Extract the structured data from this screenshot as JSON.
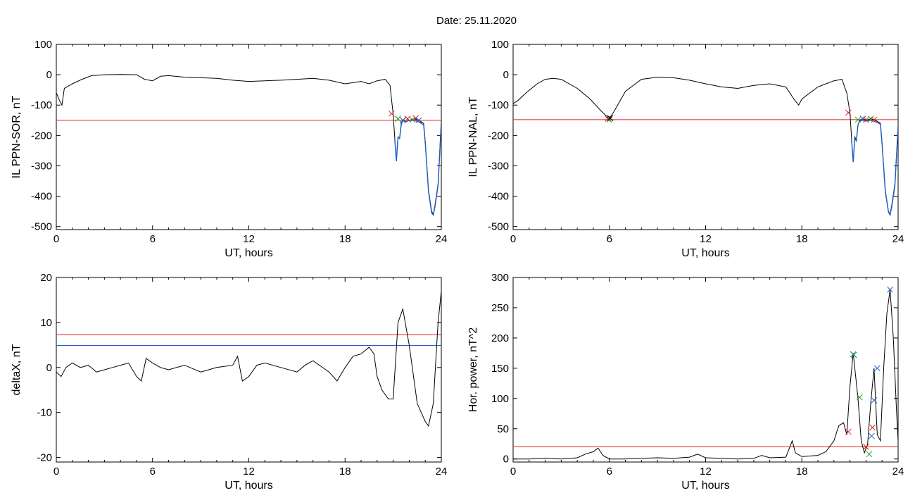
{
  "title": "Date:  25.11.2020",
  "chart_data": [
    {
      "type": "line",
      "xlabel": "UT, hours",
      "ylabel": "IL PPN-SOR, nT",
      "xlim": [
        0,
        24
      ],
      "ylim": [
        -510,
        100
      ],
      "xticks": [
        "0",
        "6",
        "12",
        "18",
        "24"
      ],
      "yticks": [
        "100",
        "0",
        "-100",
        "-200",
        "-300",
        "-400",
        "-500"
      ],
      "ytick_values": [
        100,
        0,
        -100,
        -200,
        -300,
        -400,
        -500
      ],
      "series": [
        {
          "color": "#000000",
          "x": [
            0,
            0.2,
            0.35,
            0.5,
            1,
            1.6,
            2.2,
            3,
            4,
            5,
            5.5,
            6,
            6.5,
            7,
            8,
            9,
            10,
            11,
            12,
            13,
            14,
            15,
            16,
            17,
            18,
            19,
            19.5,
            20,
            20.5,
            20.8,
            21,
            21.1,
            21.2,
            21.3,
            21.4,
            21.5,
            21.6,
            21.8,
            22,
            22.3,
            22.6,
            22.9,
            23,
            23.2,
            23.4,
            23.5,
            23.6,
            23.8,
            24
          ],
          "y": [
            -60,
            -85,
            -100,
            -45,
            -30,
            -15,
            -3,
            0,
            1,
            0,
            -15,
            -20,
            -5,
            -3,
            -8,
            -10,
            -12,
            -18,
            -22,
            -20,
            -18,
            -15,
            -12,
            -18,
            -30,
            -22,
            -30,
            -20,
            -15,
            -35,
            -130,
            -210,
            -280,
            -205,
            -210,
            -160,
            -150,
            -140,
            -150,
            -145,
            -150,
            -160,
            -220,
            -380,
            -450,
            -460,
            -430,
            -360,
            -150
          ]
        },
        {
          "color": "#1f5fbf",
          "x": [
            21.1,
            21.2,
            21.3,
            21.4,
            21.5,
            21.6,
            21.8,
            22,
            22.3,
            22.6,
            22.9,
            23,
            23.2,
            23.4,
            23.5,
            23.6,
            23.8,
            24
          ],
          "y": [
            -215,
            -285,
            -205,
            -210,
            -165,
            -150,
            -155,
            -150,
            -150,
            -155,
            -165,
            -225,
            -385,
            -455,
            -462,
            -435,
            -365,
            -155
          ]
        }
      ],
      "hlines": [
        {
          "y": -150,
          "color": "#e02020"
        }
      ],
      "markers": [
        {
          "x": 20.9,
          "y": -128,
          "color": "#e02020"
        },
        {
          "x": 21.3,
          "y": -145,
          "color": "#20a020"
        },
        {
          "x": 21.6,
          "y": -150,
          "color": "#1f5fbf"
        },
        {
          "x": 21.9,
          "y": -145,
          "color": "#e02020"
        },
        {
          "x": 22.2,
          "y": -148,
          "color": "#20a020"
        },
        {
          "x": 22.4,
          "y": -143,
          "color": "#e02020"
        },
        {
          "x": 22.6,
          "y": -150,
          "color": "#1f5fbf"
        }
      ]
    },
    {
      "type": "line",
      "xlabel": "UT, hours",
      "ylabel": "IL PPN-NAL, nT",
      "xlim": [
        0,
        24
      ],
      "ylim": [
        -510,
        100
      ],
      "xticks": [
        "0",
        "6",
        "12",
        "18",
        "24"
      ],
      "yticks": [
        "100",
        "0",
        "-100",
        "-200",
        "-300",
        "-400",
        "-500"
      ],
      "ytick_values": [
        100,
        0,
        -100,
        -200,
        -300,
        -400,
        -500
      ],
      "series": [
        {
          "color": "#000000",
          "x": [
            0,
            0.3,
            0.8,
            1.5,
            2,
            2.5,
            3,
            4,
            4.8,
            5.5,
            6,
            6.3,
            7,
            8,
            9,
            10,
            11,
            12,
            13,
            14,
            15,
            16,
            17,
            17.5,
            17.8,
            18,
            19,
            19.5,
            20,
            20.5,
            20.8,
            21,
            21.1,
            21.2,
            21.3,
            21.4,
            21.5,
            21.6,
            21.8,
            22,
            22.3,
            22.6,
            22.9,
            23,
            23.2,
            23.4,
            23.5,
            23.6,
            23.8,
            24
          ],
          "y": [
            -95,
            -85,
            -60,
            -30,
            -15,
            -12,
            -15,
            -45,
            -80,
            -120,
            -145,
            -120,
            -55,
            -15,
            -8,
            -10,
            -18,
            -30,
            -40,
            -45,
            -35,
            -30,
            -40,
            -80,
            -100,
            -80,
            -40,
            -30,
            -20,
            -15,
            -60,
            -125,
            -210,
            -285,
            -205,
            -215,
            -165,
            -150,
            -145,
            -150,
            -145,
            -150,
            -160,
            -225,
            -380,
            -450,
            -460,
            -430,
            -360,
            -170
          ]
        },
        {
          "color": "#1f5fbf",
          "x": [
            21.1,
            21.2,
            21.3,
            21.4,
            21.5,
            21.6,
            21.8,
            22,
            22.3,
            22.6,
            22.9,
            23,
            23.2,
            23.4,
            23.5,
            23.6,
            23.8,
            24
          ],
          "y": [
            -215,
            -288,
            -210,
            -218,
            -165,
            -152,
            -150,
            -152,
            -150,
            -155,
            -163,
            -228,
            -385,
            -452,
            -462,
            -436,
            -366,
            -172
          ]
        }
      ],
      "hlines": [
        {
          "y": -148,
          "color": "#e02020"
        }
      ],
      "markers": [
        {
          "x": 5.9,
          "y": -145,
          "color": "#e02020"
        },
        {
          "x": 6.0,
          "y": -148,
          "color": "#20a020"
        },
        {
          "x": 6.05,
          "y": -143,
          "color": "#000000"
        },
        {
          "x": 20.9,
          "y": -125,
          "color": "#e02020"
        },
        {
          "x": 21.5,
          "y": -148,
          "color": "#20a020"
        },
        {
          "x": 21.8,
          "y": -145,
          "color": "#1f5fbf"
        },
        {
          "x": 22.0,
          "y": -148,
          "color": "#e02020"
        },
        {
          "x": 22.3,
          "y": -145,
          "color": "#20a020"
        },
        {
          "x": 22.5,
          "y": -148,
          "color": "#e02020"
        }
      ]
    },
    {
      "type": "line",
      "xlabel": "UT, hours",
      "ylabel": "deltaX, nT",
      "xlim": [
        0,
        24
      ],
      "ylim": [
        -21,
        20
      ],
      "xticks": [
        "0",
        "6",
        "12",
        "18",
        "24"
      ],
      "yticks": [
        "20",
        "10",
        "0",
        "-10",
        "-20"
      ],
      "ytick_values": [
        20,
        10,
        0,
        -10,
        -20
      ],
      "series": [
        {
          "color": "#000000",
          "x": [
            0,
            0.3,
            0.6,
            1,
            1.5,
            2,
            2.5,
            3,
            3.5,
            4,
            4.5,
            5,
            5.3,
            5.6,
            6,
            6.5,
            7,
            8,
            9,
            10,
            11,
            11.3,
            11.6,
            12,
            12.5,
            13,
            14,
            15,
            15.5,
            16,
            17,
            17.5,
            18,
            18.5,
            19,
            19.5,
            19.8,
            20,
            20.3,
            20.7,
            21,
            21.3,
            21.6,
            22,
            22.5,
            23,
            23.2,
            23.5,
            23.8,
            24
          ],
          "y": [
            -1,
            -2,
            0,
            1,
            0,
            0.5,
            -1,
            -0.5,
            0,
            0.5,
            1,
            -2,
            -3,
            2,
            1,
            0,
            -0.5,
            0.5,
            -1,
            0,
            0.5,
            2.5,
            -3,
            -2,
            0.5,
            1,
            0,
            -1,
            0.5,
            1.5,
            -1,
            -3,
            0,
            2.5,
            3,
            4.5,
            3,
            -2,
            -5,
            -7,
            -7,
            10,
            13,
            5,
            -8,
            -12,
            -13,
            -8,
            10,
            17
          ]
        }
      ],
      "hlines": [
        {
          "y": 7.3,
          "color": "#e02020"
        },
        {
          "y": 4.9,
          "color": "#1f5fbf"
        }
      ],
      "markers": []
    },
    {
      "type": "line",
      "xlabel": "UT, hours",
      "ylabel": "Hor. power, nT^2",
      "xlim": [
        0,
        24
      ],
      "ylim": [
        -5,
        300
      ],
      "xticks": [
        "0",
        "6",
        "12",
        "18",
        "24"
      ],
      "yticks": [
        "300",
        "250",
        "200",
        "150",
        "100",
        "50",
        "0"
      ],
      "ytick_values": [
        300,
        250,
        200,
        150,
        100,
        50,
        0
      ],
      "series": [
        {
          "color": "#000000",
          "x": [
            0,
            1,
            2,
            3,
            4,
            4.5,
            5,
            5.3,
            5.6,
            6,
            7,
            8,
            9,
            10,
            11,
            11.5,
            12,
            13,
            14,
            15,
            15.5,
            16,
            17,
            17.4,
            17.6,
            18,
            19,
            19.5,
            20,
            20.3,
            20.6,
            20.8,
            21,
            21.2,
            21.5,
            21.7,
            21.9,
            22.1,
            22.3,
            22.5,
            22.7,
            22.9,
            23.1,
            23.3,
            23.5,
            23.7,
            23.9,
            24
          ],
          "y": [
            0,
            0,
            1,
            0,
            2,
            8,
            12,
            18,
            6,
            0,
            0,
            1,
            2,
            1,
            3,
            8,
            2,
            1,
            0,
            1,
            6,
            2,
            3,
            30,
            10,
            4,
            6,
            12,
            30,
            55,
            60,
            40,
            120,
            175,
            100,
            30,
            10,
            25,
            95,
            150,
            40,
            30,
            150,
            240,
            280,
            200,
            80,
            30
          ]
        }
      ],
      "hlines": [
        {
          "y": 20,
          "color": "#e02020"
        }
      ],
      "markers": [
        {
          "x": 21.2,
          "y": 173,
          "color": "#1f5fbf"
        },
        {
          "x": 21.25,
          "y": 172,
          "color": "#20a020"
        },
        {
          "x": 21.6,
          "y": 102,
          "color": "#20a020"
        },
        {
          "x": 22.0,
          "y": 20,
          "color": "#e02020"
        },
        {
          "x": 22.2,
          "y": 8,
          "color": "#20a020"
        },
        {
          "x": 22.35,
          "y": 38,
          "color": "#1f5fbf"
        },
        {
          "x": 22.4,
          "y": 52,
          "color": "#e02020"
        },
        {
          "x": 22.5,
          "y": 97,
          "color": "#1f5fbf"
        },
        {
          "x": 22.7,
          "y": 150,
          "color": "#1f5fbf"
        },
        {
          "x": 23.5,
          "y": 280,
          "color": "#1f5fbf"
        },
        {
          "x": 20.9,
          "y": 45,
          "color": "#e02020"
        }
      ]
    }
  ]
}
